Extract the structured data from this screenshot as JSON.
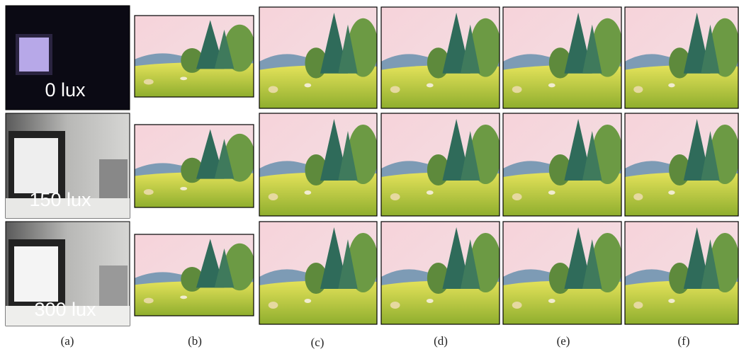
{
  "figure": {
    "rows": [
      {
        "label": "0 lux"
      },
      {
        "label": "150  lux"
      },
      {
        "label": "300  lux"
      }
    ],
    "columns": [
      "(a)",
      "(b)",
      "(c)",
      "(d)",
      "(e)",
      "(f)"
    ]
  }
}
